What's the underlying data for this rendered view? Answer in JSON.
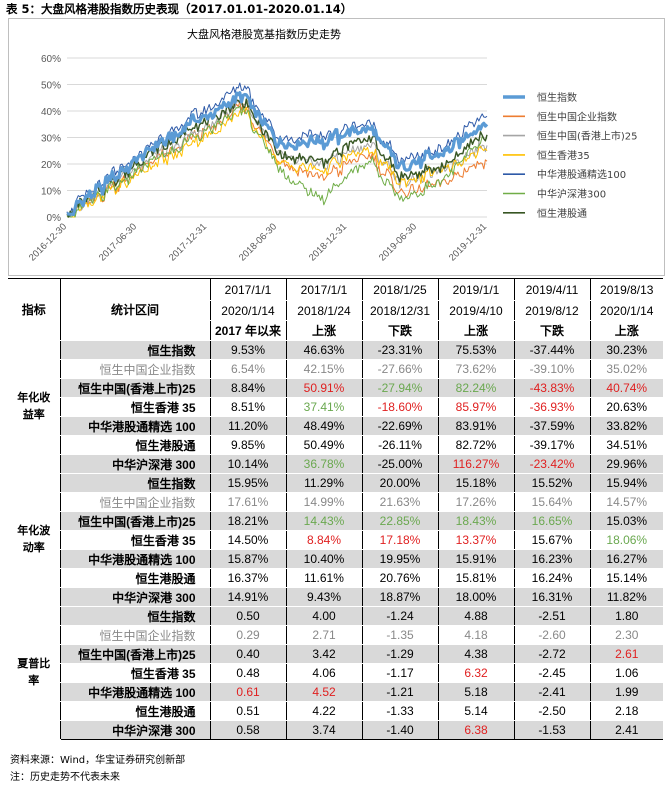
{
  "caption": "表 5：大盘风格港股指数历史表现（2017.01.01-2020.01.14）",
  "chart_data": {
    "type": "line",
    "title": "大盘风格港股宽基指数历史走势",
    "y_ticks": [
      "0%",
      "10%",
      "20%",
      "30%",
      "40%",
      "50%",
      "60%"
    ],
    "ylim": [
      0,
      0.6
    ],
    "x_ticks": [
      "2016-12-30",
      "2017-06-30",
      "2017-12-31",
      "2018-06-30",
      "2018-12-31",
      "2019-06-30",
      "2019-12-31"
    ],
    "x_keys": [
      0,
      0.12,
      0.3,
      0.42,
      0.5,
      0.6,
      0.72,
      0.8,
      0.88,
      1.0
    ],
    "series": [
      {
        "name": "恒生指数",
        "color": "#5b9bd5",
        "width": 3.2,
        "values": [
          0.01,
          0.16,
          0.36,
          0.46,
          0.29,
          0.28,
          0.34,
          0.18,
          0.24,
          0.35
        ]
      },
      {
        "name": "恒生中国企业指数",
        "color": "#ed7d31",
        "width": 1,
        "values": [
          0.0,
          0.12,
          0.3,
          0.42,
          0.23,
          0.14,
          0.24,
          0.08,
          0.13,
          0.21
        ]
      },
      {
        "name": "恒生中国(香港上市)25",
        "color": "#a5a5a5",
        "width": 1,
        "values": [
          0.0,
          0.14,
          0.31,
          0.44,
          0.25,
          0.19,
          0.28,
          0.12,
          0.18,
          0.27
        ]
      },
      {
        "name": "恒生香港35",
        "color": "#ffc000",
        "width": 1,
        "values": [
          0.0,
          0.11,
          0.28,
          0.4,
          0.22,
          0.17,
          0.26,
          0.12,
          0.18,
          0.25
        ]
      },
      {
        "name": "中华港股通精选100",
        "color": "#2e5aa8",
        "width": 1,
        "values": [
          0.02,
          0.17,
          0.38,
          0.5,
          0.31,
          0.3,
          0.36,
          0.2,
          0.26,
          0.38
        ]
      },
      {
        "name": "中华沪深港300",
        "color": "#70ad47",
        "width": 1,
        "values": [
          0.0,
          0.12,
          0.3,
          0.41,
          0.2,
          0.06,
          0.22,
          0.06,
          0.13,
          0.3
        ]
      },
      {
        "name": "恒生港股通",
        "color": "#375623",
        "width": 1.4,
        "values": [
          0.01,
          0.15,
          0.34,
          0.44,
          0.25,
          0.2,
          0.31,
          0.14,
          0.19,
          0.31
        ]
      }
    ]
  },
  "table": {
    "header_label_index": "指标",
    "header_label_period": "统计区间",
    "period_start": [
      "2017/1/1",
      "2017/1/1",
      "2018/1/25",
      "2019/1/1",
      "2019/4/11",
      "2019/8/13"
    ],
    "period_end": [
      "2020/1/14",
      "2018/1/24",
      "2018/12/31",
      "2019/4/10",
      "2019/8/12",
      "2020/1/14"
    ],
    "period_type": [
      "2017 年以来",
      "上涨",
      "下跌",
      "上涨",
      "下跌",
      "上涨"
    ],
    "groups": [
      {
        "name": "年化收益率",
        "rows": [
          {
            "label": "恒生指数",
            "values": [
              "9.53%",
              "46.63%",
              "-23.31%",
              "75.53%",
              "-37.44%",
              "30.23%"
            ]
          },
          {
            "label": "恒生中国企业指数",
            "values": [
              "6.54%",
              "42.15%",
              "-27.66%",
              "73.62%",
              "-39.10%",
              "35.02%"
            ]
          },
          {
            "label": "恒生中国(香港上市)25",
            "values": [
              "8.84%",
              "50.91%",
              "-27.94%",
              "82.24%",
              "-43.83%",
              "40.74%"
            ]
          },
          {
            "label": "恒生香港 35",
            "values": [
              "8.51%",
              "37.41%",
              "-18.60%",
              "85.97%",
              "-36.93%",
              "20.63%"
            ]
          },
          {
            "label": "中华港股通精选 100",
            "values": [
              "11.20%",
              "48.49%",
              "-22.69%",
              "83.91%",
              "-37.59%",
              "33.82%"
            ]
          },
          {
            "label": "恒生港股通",
            "values": [
              "9.85%",
              "50.49%",
              "-26.11%",
              "82.72%",
              "-39.17%",
              "34.51%"
            ]
          },
          {
            "label": "中华沪深港 300",
            "values": [
              "10.14%",
              "36.78%",
              "-25.00%",
              "116.27%",
              "-23.42%",
              "29.96%"
            ]
          }
        ]
      },
      {
        "name": "年化波动率",
        "rows": [
          {
            "label": "恒生指数",
            "values": [
              "15.95%",
              "11.29%",
              "20.00%",
              "15.18%",
              "15.52%",
              "15.94%"
            ]
          },
          {
            "label": "恒生中国企业指数",
            "values": [
              "17.61%",
              "14.99%",
              "21.63%",
              "17.26%",
              "15.64%",
              "14.57%"
            ]
          },
          {
            "label": "恒生中国(香港上市)25",
            "values": [
              "18.21%",
              "14.43%",
              "22.85%",
              "18.43%",
              "16.65%",
              "15.03%"
            ]
          },
          {
            "label": "恒生香港 35",
            "values": [
              "14.50%",
              "8.84%",
              "17.18%",
              "13.37%",
              "15.67%",
              "18.06%"
            ]
          },
          {
            "label": "中华港股通精选 100",
            "values": [
              "15.87%",
              "10.40%",
              "19.95%",
              "15.91%",
              "16.23%",
              "16.27%"
            ]
          },
          {
            "label": "恒生港股通",
            "values": [
              "16.37%",
              "11.61%",
              "20.76%",
              "15.81%",
              "16.24%",
              "15.14%"
            ]
          },
          {
            "label": "中华沪深港 300",
            "values": [
              "14.91%",
              "9.43%",
              "18.87%",
              "18.00%",
              "16.31%",
              "11.82%"
            ]
          }
        ]
      },
      {
        "name": "夏普比率",
        "rows": [
          {
            "label": "恒生指数",
            "values": [
              "0.50",
              "4.00",
              "-1.24",
              "4.88",
              "-2.51",
              "1.80"
            ]
          },
          {
            "label": "恒生中国企业指数",
            "values": [
              "0.29",
              "2.71",
              "-1.35",
              "4.18",
              "-2.60",
              "2.30"
            ]
          },
          {
            "label": "恒生中国(香港上市)25",
            "values": [
              "0.40",
              "3.42",
              "-1.29",
              "4.38",
              "-2.72",
              "2.61"
            ]
          },
          {
            "label": "恒生香港 35",
            "values": [
              "0.48",
              "4.06",
              "-1.17",
              "6.32",
              "-2.45",
              "1.06"
            ]
          },
          {
            "label": "中华港股通精选 100",
            "values": [
              "0.61",
              "4.52",
              "-1.21",
              "5.18",
              "-2.41",
              "1.99"
            ]
          },
          {
            "label": "恒生港股通",
            "values": [
              "0.51",
              "4.22",
              "-1.33",
              "5.14",
              "-2.50",
              "2.18"
            ]
          },
          {
            "label": "中华沪深港 300",
            "values": [
              "0.58",
              "3.74",
              "-1.40",
              "6.38",
              "-1.53",
              "2.41"
            ]
          }
        ]
      }
    ],
    "highlight_red": [
      "0-2-1",
      "0-2-4",
      "0-2-5",
      "0-3-2",
      "0-3-3",
      "0-3-4",
      "0-6-3",
      "0-6-4",
      "1-3-1",
      "1-3-2",
      "1-3-3",
      "2-2-5",
      "2-3-3",
      "2-4-0",
      "2-4-1",
      "2-6-3"
    ],
    "highlight_green": [
      "0-2-2",
      "0-2-3",
      "0-3-1",
      "0-6-1",
      "1-2-1",
      "1-2-2",
      "1-2-3",
      "1-2-4",
      "1-3-5"
    ]
  },
  "notes": {
    "source": "资料来源：Wind，华宝证券研究创新部",
    "note": "注：历史走势不代表未来"
  }
}
